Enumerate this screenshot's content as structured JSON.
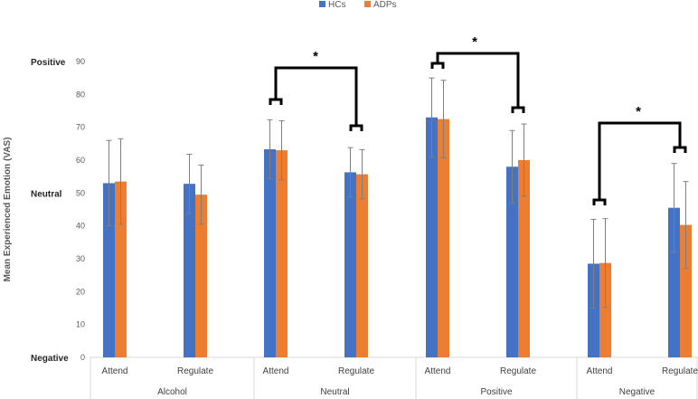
{
  "chart_data": {
    "type": "bar",
    "title": "",
    "xlabel": "",
    "ylabel": "Mean Experienced Emotion (VAS)",
    "ylim": [
      0,
      90
    ],
    "yticks": [
      0,
      10,
      20,
      30,
      40,
      50,
      60,
      70,
      80,
      90
    ],
    "grid": false,
    "legend_position": "top-center",
    "colors": {
      "HCs": "#4472C4",
      "ADPs": "#ED7D31"
    },
    "groups": [
      {
        "label": "Alcohol",
        "categories": [
          "Attend",
          "Regulate"
        ]
      },
      {
        "label": "Neutral",
        "categories": [
          "Attend",
          "Regulate"
        ]
      },
      {
        "label": "Positive",
        "categories": [
          "Attend",
          "Regulate"
        ]
      },
      {
        "label": "Negative",
        "categories": [
          "Attend",
          "Regulate"
        ]
      }
    ],
    "series": [
      {
        "name": "HCs",
        "values": [
          53,
          52.8,
          63.3,
          56.3,
          73,
          58,
          28.5,
          45.5
        ],
        "errors": [
          13,
          9,
          9,
          7.5,
          12,
          11,
          13.5,
          13.5
        ]
      },
      {
        "name": "ADPs",
        "values": [
          53.5,
          49.5,
          63,
          55.7,
          72.5,
          60,
          28.7,
          40.3
        ],
        "errors": [
          13,
          9,
          9,
          7.5,
          11.8,
          11,
          13.5,
          13.2
        ]
      }
    ],
    "side_labels": [
      {
        "text": "Positive",
        "value": 90
      },
      {
        "text": "Neutral",
        "value": 50
      },
      {
        "text": "Negative",
        "value": 0
      }
    ],
    "annotations": [
      {
        "text": "*",
        "from": 2,
        "to": 3
      },
      {
        "text": "*",
        "from": 4,
        "to": 5
      },
      {
        "text": "*",
        "from": 6,
        "to": 7
      }
    ]
  }
}
